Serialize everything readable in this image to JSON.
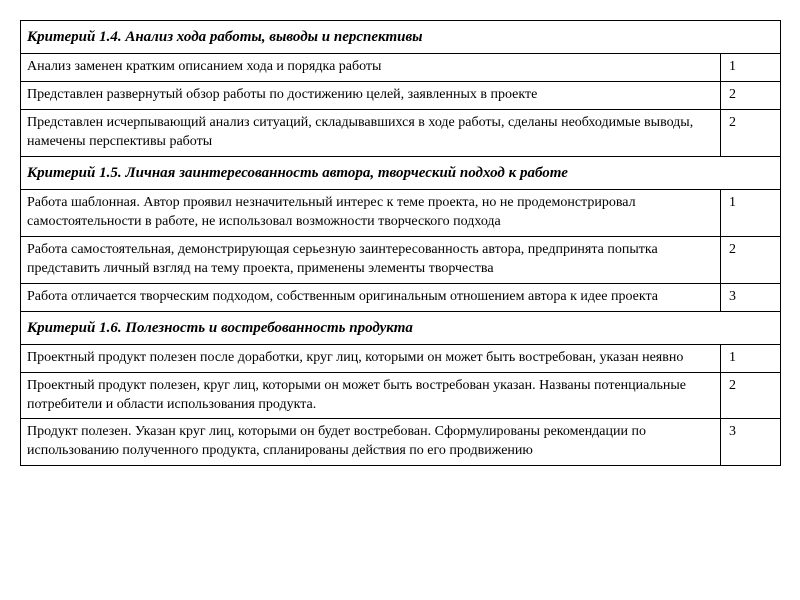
{
  "sections": [
    {
      "title": "Критерий 1.4. Анализ хода работы, выводы и перспективы",
      "rows": [
        {
          "desc": "Анализ заменен кратким описанием хода и порядка работы",
          "score": "1"
        },
        {
          "desc": "Представлен развернутый обзор работы по достижению целей, заявленных в проекте",
          "score": "2"
        },
        {
          "desc": "Представлен исчерпывающий анализ ситуаций, складывавшихся в ходе работы, сделаны необходимые выводы, намечены перспективы работы",
          "score": "2"
        }
      ]
    },
    {
      "title": "Критерий 1.5. Личная заинтересованность автора, творческий подход к работе",
      "rows": [
        {
          "desc": "Работа шаблонная. Автор проявил незначительный интерес к теме проекта, но не продемонстрировал самостоятельности в работе, не использовал возможности творческого подхода",
          "score": "1"
        },
        {
          "desc": "Работа самостоятельная, демонстрирующая серьезную заинтересованность автора, предпринята попытка представить личный взгляд на тему проекта, применены элементы творчества",
          "score": "2"
        },
        {
          "desc": "Работа отличается творческим подходом, собственным оригинальным отношением автора к идее проекта",
          "score": "3"
        }
      ]
    },
    {
      "title": "Критерий 1.6. Полезность и востребованность продукта",
      "rows": [
        {
          "desc": "Проектный продукт полезен после доработки, круг лиц, которыми он может быть востребован, указан неявно",
          "score": "1"
        },
        {
          "desc": "Проектный продукт полезен, круг лиц, которыми он может быть востребован указан. Названы потенциальные потребители и области использования продукта.",
          "score": "2"
        },
        {
          "desc": "Продукт полезен. Указан круг лиц, которыми он будет востребован. Сформулированы рекомендации по использованию полученного продукта, спланированы действия по его продвижению",
          "score": "3"
        }
      ]
    }
  ]
}
